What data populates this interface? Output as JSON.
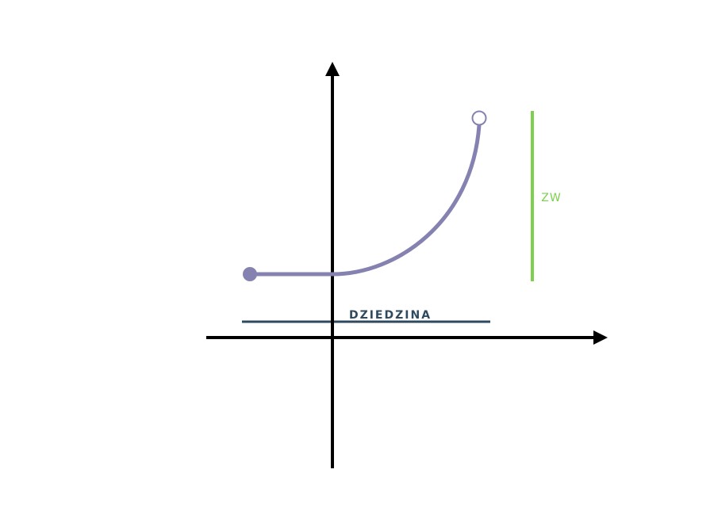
{
  "diagram": {
    "labels": {
      "domain": "DZIEDZINA",
      "range": "ZW"
    },
    "colors": {
      "axes": "#000000",
      "curve": "#8582b1",
      "domain_line": "#2f4a5e",
      "range_line": "#7ccf4f",
      "background": "#ffffff"
    },
    "endpoints": {
      "left": "closed",
      "right": "open"
    }
  }
}
